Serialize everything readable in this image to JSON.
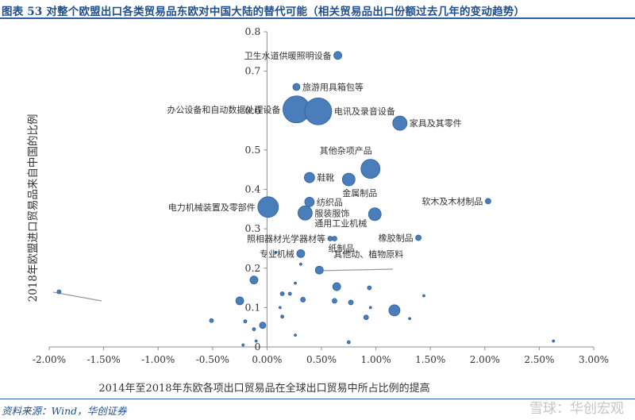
{
  "caption": "图表 53  对整个欧盟出口各类贸易品东欧对中国大陆的替代可能（相关贸易品出口份额过去几年的变动趋势）",
  "source": "资料来源：Wind，华创证券",
  "watermark": "雪球：华创宏观",
  "colors": {
    "bubble": "#4a7ebb",
    "bubble_edge": "#2f5f9e",
    "caption": "#1f4e8c",
    "axis": "#8c8c8c",
    "text": "#333333"
  },
  "chart_data": {
    "type": "scatter",
    "xlabel": "2014年至2018年东欧各项出口贸易品在全球出口贸易中所占比例的提高",
    "ylabel": "2018年欧盟进口贸易品来自中国的比例",
    "xlim": [
      -0.02,
      0.03
    ],
    "ylim": [
      0,
      0.8
    ],
    "x_ticks": [
      {
        "v": -0.02,
        "label": "-2.00%"
      },
      {
        "v": -0.015,
        "label": "-1.50%"
      },
      {
        "v": -0.01,
        "label": "-1.00%"
      },
      {
        "v": -0.005,
        "label": "-0.50%"
      },
      {
        "v": 0,
        "label": "0.00%"
      },
      {
        "v": 0.005,
        "label": "0.50%"
      },
      {
        "v": 0.01,
        "label": "1.00%"
      },
      {
        "v": 0.015,
        "label": "1.50%"
      },
      {
        "v": 0.02,
        "label": "2.00%"
      },
      {
        "v": 0.025,
        "label": "2.50%"
      },
      {
        "v": 0.03,
        "label": "3.00%"
      }
    ],
    "y_ticks": [
      {
        "v": 0,
        "label": "0"
      },
      {
        "v": 0.1,
        "label": "0.1"
      },
      {
        "v": 0.2,
        "label": "0.2"
      },
      {
        "v": 0.3,
        "label": "0.3"
      },
      {
        "v": 0.4,
        "label": "0.4"
      },
      {
        "v": 0.5,
        "label": "0.5"
      },
      {
        "v": 0.6,
        "label": "0.6"
      },
      {
        "v": 0.7,
        "label": "0.7"
      },
      {
        "v": 0.8,
        "label": "0.8"
      }
    ],
    "grid": false,
    "legend": "none",
    "points": [
      {
        "x": 0.0065,
        "y": 0.74,
        "size": 5,
        "label": "卫生水道供暖照明设备",
        "label_side": "left"
      },
      {
        "x": 0.0027,
        "y": 0.66,
        "size": 4.5,
        "label": "旅游用具箱包等",
        "label_side": "right"
      },
      {
        "x": 0.0027,
        "y": 0.603,
        "size": 17,
        "label": "办公设备和自动数据处理设备",
        "label_side": "left"
      },
      {
        "x": 0.0047,
        "y": 0.598,
        "size": 17,
        "label": "电讯及录音设备",
        "label_side": "right"
      },
      {
        "x": 0.0122,
        "y": 0.568,
        "size": 9,
        "label": "家具及其零件",
        "label_side": "right"
      },
      {
        "x": 0.0095,
        "y": 0.452,
        "size": 12,
        "label": "其他杂项产品",
        "label_side": "above-left"
      },
      {
        "x": 0.0039,
        "y": 0.43,
        "size": 6.5,
        "label": "鞋靴",
        "label_side": "right"
      },
      {
        "x": 0.0075,
        "y": 0.425,
        "size": 8,
        "label": "金属制品",
        "label_side": "below"
      },
      {
        "x": 0.0203,
        "y": 0.37,
        "size": 3.5,
        "label": "软木及木材制品",
        "label_side": "left"
      },
      {
        "x": 0.0039,
        "y": 0.368,
        "size": 6,
        "label": "纺织品",
        "label_side": "right"
      },
      {
        "x": 0.0001,
        "y": 0.355,
        "size": 13,
        "label": "电力机械装置及零部件",
        "label_side": "left"
      },
      {
        "x": 0.0035,
        "y": 0.34,
        "size": 9,
        "label": "服装服饰",
        "label_side": "right"
      },
      {
        "x": 0.0099,
        "y": 0.337,
        "size": 8,
        "label": "通用工业机械",
        "label_side": "left-below"
      },
      {
        "x": 0.0058,
        "y": 0.275,
        "size": 3,
        "label": "照相器材光学器材等",
        "label_side": "left"
      },
      {
        "x": 0.0139,
        "y": 0.277,
        "size": 3.5,
        "label": "橡胶制品",
        "label_side": "left"
      },
      {
        "x": 0.0062,
        "y": 0.275,
        "size": 3,
        "label": "纸制品",
        "label_side": "below"
      },
      {
        "x": 0.0031,
        "y": 0.237,
        "size": 5,
        "label": "专业机械",
        "label_side": "left"
      },
      {
        "x": 0.0048,
        "y": 0.195,
        "size": 5,
        "label": "其他动、植物原料",
        "label_side": "above"
      },
      {
        "x": -0.0191,
        "y": 0.14,
        "size": 2.5
      },
      {
        "x": -0.0012,
        "y": 0.17,
        "size": 5
      },
      {
        "x": -0.0025,
        "y": 0.117,
        "size": 5
      },
      {
        "x": 0.0064,
        "y": 0.153,
        "size": 5
      },
      {
        "x": 0.0117,
        "y": 0.093,
        "size": 7
      },
      {
        "x": -0.0004,
        "y": 0.055,
        "size": 4
      },
      {
        "x": 0.0033,
        "y": 0.12,
        "size": 3
      },
      {
        "x": 0.0062,
        "y": 0.117,
        "size": 3
      },
      {
        "x": 0.0077,
        "y": 0.113,
        "size": 3
      },
      {
        "x": 0.0091,
        "y": 0.075,
        "size": 3
      },
      {
        "x": 0.0094,
        "y": 0.15,
        "size": 2.5
      },
      {
        "x": 0.0014,
        "y": 0.135,
        "size": 2.5
      },
      {
        "x": -0.0051,
        "y": 0.067,
        "size": 2.5
      },
      {
        "x": -0.0012,
        "y": 0.045,
        "size": 2
      },
      {
        "x": 0.0014,
        "y": 0.077,
        "size": 2
      },
      {
        "x": 0.0021,
        "y": 0.135,
        "size": 2
      },
      {
        "x": 0.0075,
        "y": 0.012,
        "size": 2
      },
      {
        "x": -0.002,
        "y": 0.065,
        "size": 2
      },
      {
        "x": 0.0144,
        "y": 0.13,
        "size": 1.5
      },
      {
        "x": -0.001,
        "y": 0.015,
        "size": 1.5
      },
      {
        "x": 0.0026,
        "y": 0.162,
        "size": 1.5
      },
      {
        "x": 0.0008,
        "y": 0.24,
        "size": 1.5
      },
      {
        "x": 0.0031,
        "y": 0.21,
        "size": 1.5
      },
      {
        "x": 0.0012,
        "y": 0.1,
        "size": 1.5
      },
      {
        "x": -0.0022,
        "y": 0.005,
        "size": 1.5
      },
      {
        "x": 0.0026,
        "y": 0.03,
        "size": 1.5
      },
      {
        "x": 0.0131,
        "y": 0.072,
        "size": 1.5
      },
      {
        "x": 0.0263,
        "y": 0.015,
        "size": 1.5
      },
      {
        "x": 0.0095,
        "y": 0.1,
        "size": 1.5
      }
    ]
  }
}
